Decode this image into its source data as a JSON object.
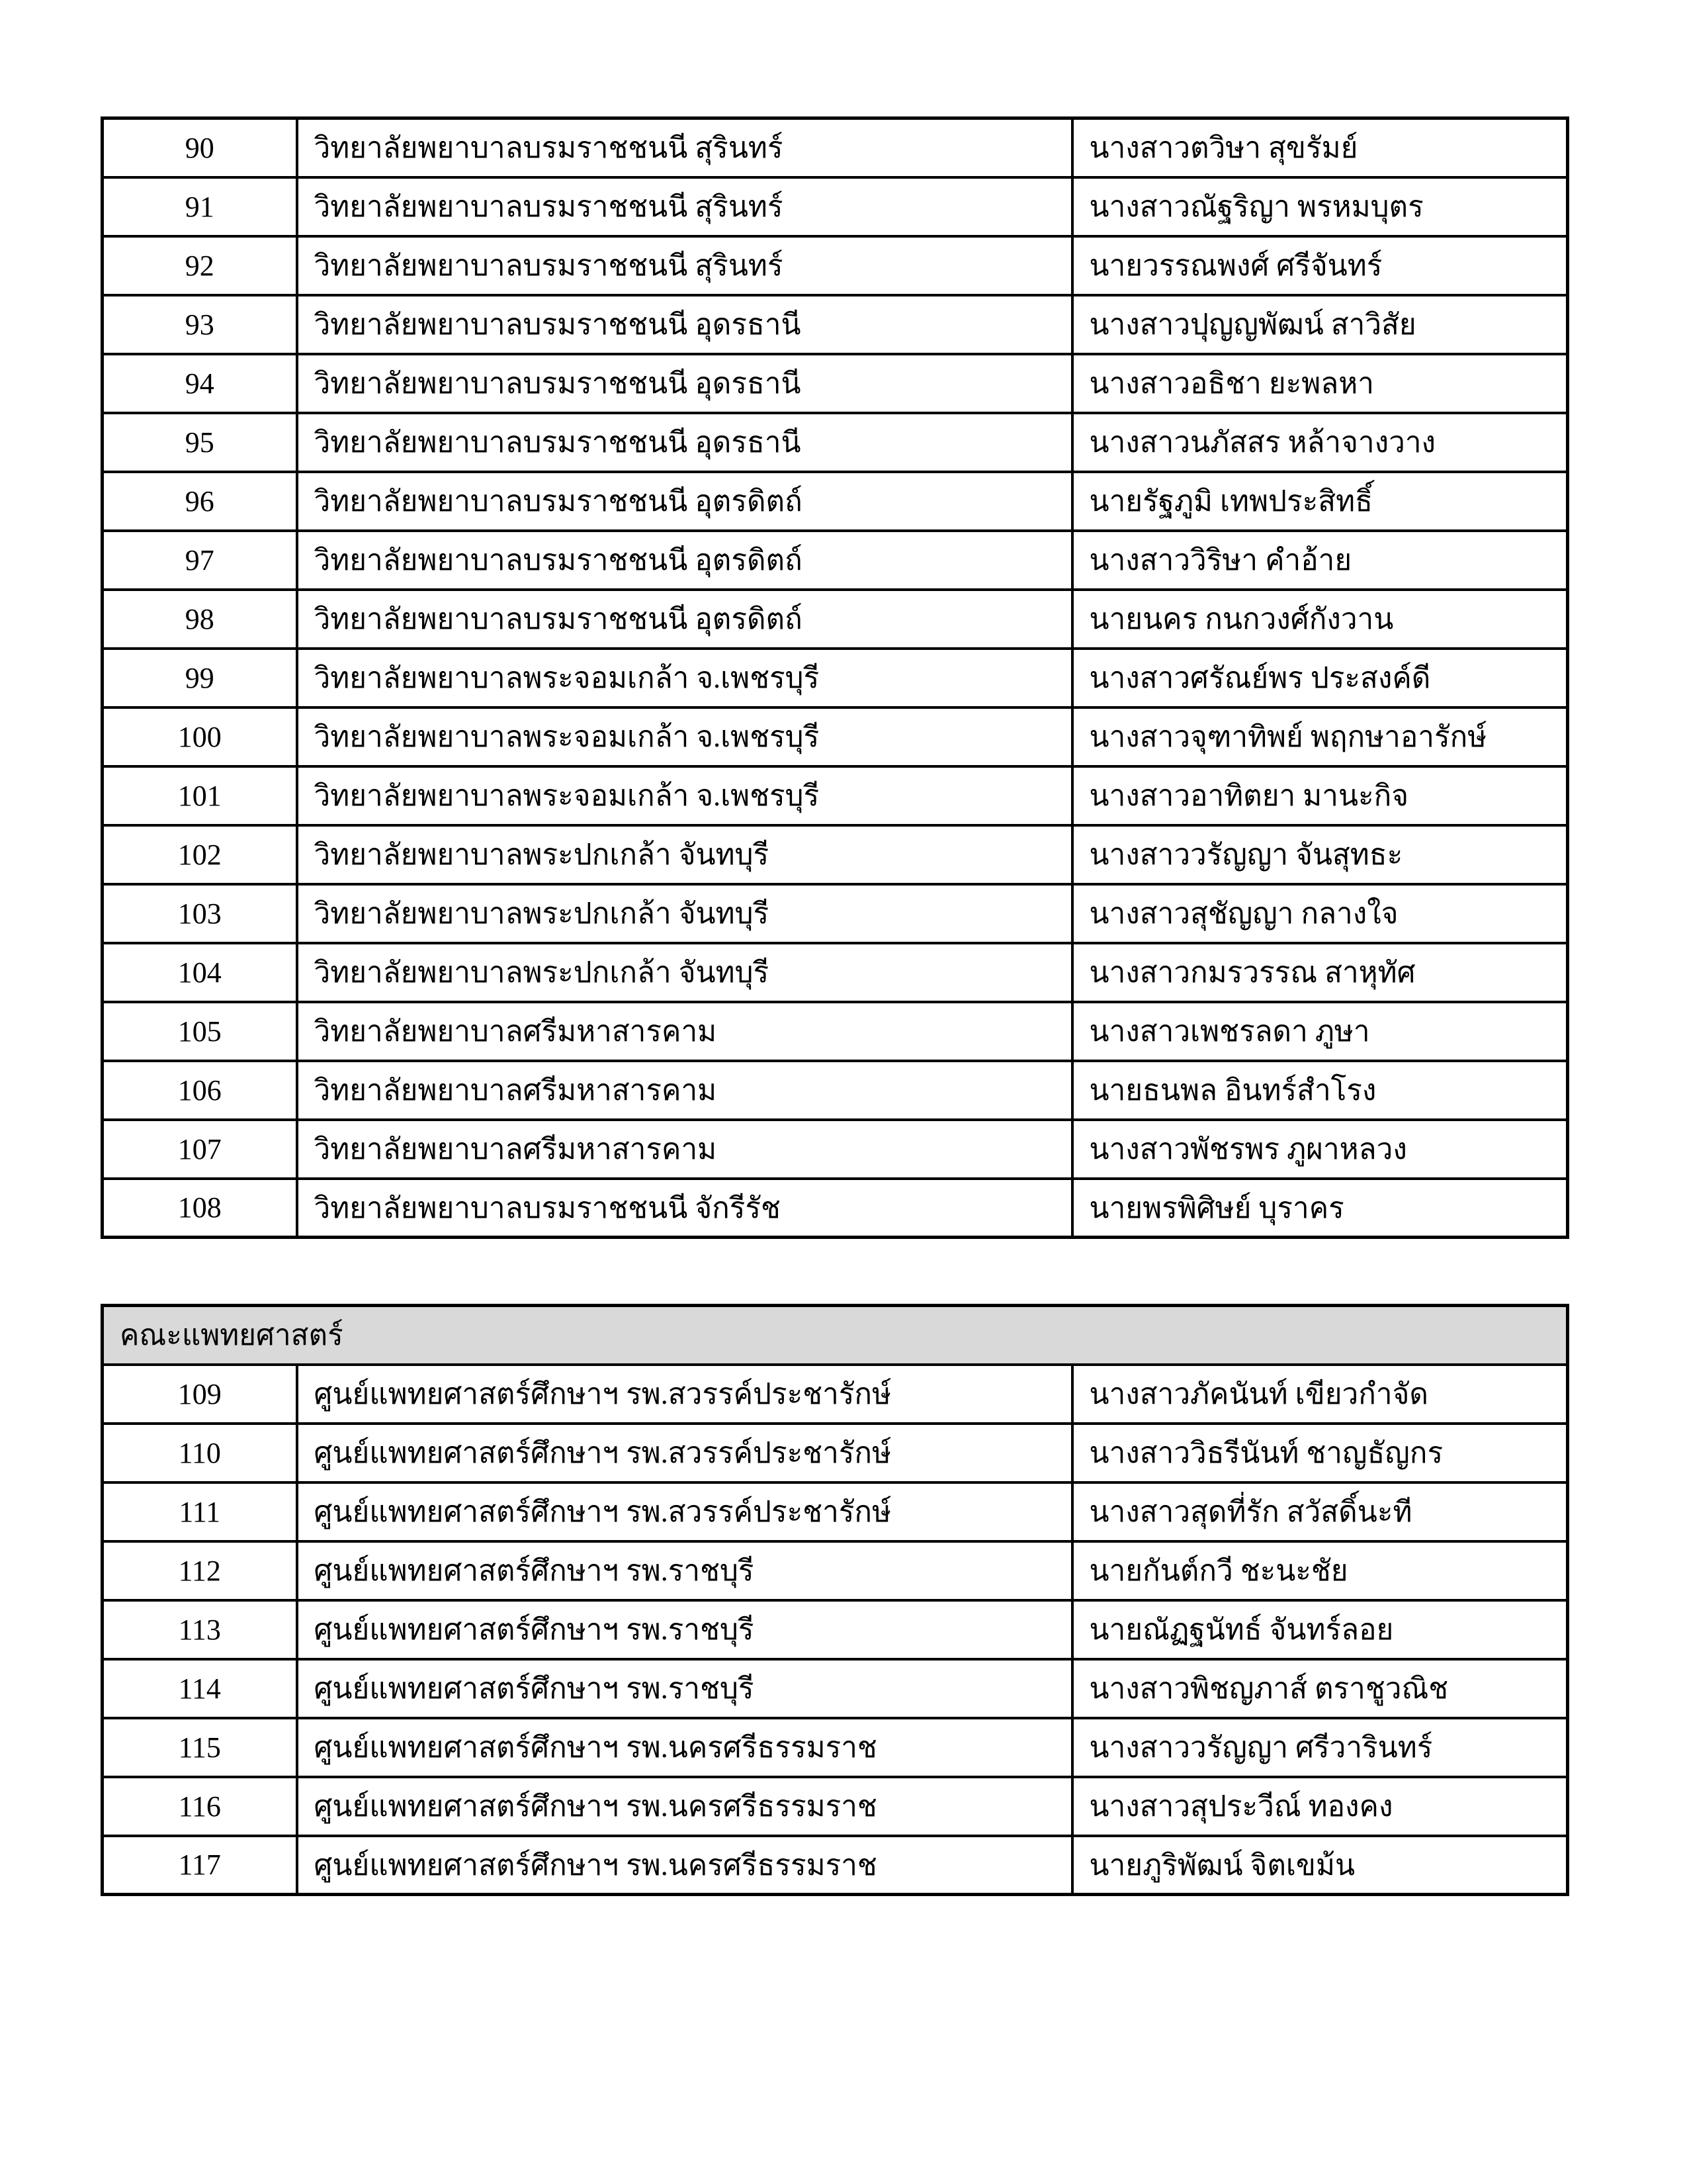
{
  "page": {
    "background_color": "#ffffff",
    "border_color": "#000000",
    "section_header_bg": "#d9d9d9"
  },
  "tables": [
    {
      "name": "nursing-colleges-roster",
      "header": null,
      "rows": [
        {
          "no": "90",
          "institution": "วิทยาลัยพยาบาลบรมราชชนนี สุรินทร์",
          "student": "นางสาวตวิษา สุขรัมย์"
        },
        {
          "no": "91",
          "institution": "วิทยาลัยพยาบาลบรมราชชนนี สุรินทร์",
          "student": "นางสาวณัฐริญา พรหมบุตร"
        },
        {
          "no": "92",
          "institution": "วิทยาลัยพยาบาลบรมราชชนนี สุรินทร์",
          "student": "นายวรรณพงศ์ ศรีจันทร์"
        },
        {
          "no": "93",
          "institution": "วิทยาลัยพยาบาลบรมราชชนนี อุดรธานี",
          "student": "นางสาวปุญญพัฒน์ สาวิสัย"
        },
        {
          "no": "94",
          "institution": "วิทยาลัยพยาบาลบรมราชชนนี อุดรธานี",
          "student": "นางสาวอธิชา ยะพลหา"
        },
        {
          "no": "95",
          "institution": "วิทยาลัยพยาบาลบรมราชชนนี อุดรธานี",
          "student": "นางสาวนภัสสร หล้าจางวาง"
        },
        {
          "no": "96",
          "institution": "วิทยาลัยพยาบาลบรมราชชนนี อุตรดิตถ์",
          "student": "นายรัฐภูมิ เทพประสิทธิ์"
        },
        {
          "no": "97",
          "institution": "วิทยาลัยพยาบาลบรมราชชนนี อุตรดิตถ์",
          "student": "นางสาววิริษา คำอ้าย"
        },
        {
          "no": "98",
          "institution": "วิทยาลัยพยาบาลบรมราชชนนี อุตรดิตถ์",
          "student": "นายนคร กนกวงศ์กังวาน"
        },
        {
          "no": "99",
          "institution": "วิทยาลัยพยาบาลพระจอมเกล้า จ.เพชรบุรี",
          "student": "นางสาวศรัณย์พร ประสงค์ดี"
        },
        {
          "no": "100",
          "institution": "วิทยาลัยพยาบาลพระจอมเกล้า จ.เพชรบุรี",
          "student": "นางสาวจุฑาทิพย์ พฤกษาอารักษ์"
        },
        {
          "no": "101",
          "institution": "วิทยาลัยพยาบาลพระจอมเกล้า จ.เพชรบุรี",
          "student": "นางสาวอาทิตยา มานะกิจ"
        },
        {
          "no": "102",
          "institution": "วิทยาลัยพยาบาลพระปกเกล้า จันทบุรี",
          "student": "นางสาววรัญญา จันสุทธะ"
        },
        {
          "no": "103",
          "institution": "วิทยาลัยพยาบาลพระปกเกล้า จันทบุรี",
          "student": "นางสาวสุชัญญา กลางใจ"
        },
        {
          "no": "104",
          "institution": "วิทยาลัยพยาบาลพระปกเกล้า จันทบุรี",
          "student": "นางสาวกมรวรรณ สาหุทัศ"
        },
        {
          "no": "105",
          "institution": "วิทยาลัยพยาบาลศรีมหาสารคาม",
          "student": "นางสาวเพชรลดา ภูษา"
        },
        {
          "no": "106",
          "institution": "วิทยาลัยพยาบาลศรีมหาสารคาม",
          "student": "นายธนพล อินทร์สำโรง"
        },
        {
          "no": "107",
          "institution": "วิทยาลัยพยาบาลศรีมหาสารคาม",
          "student": "นางสาวพัชรพร ภูผาหลวง"
        },
        {
          "no": "108",
          "institution": "วิทยาลัยพยาบาลบรมราชชนนี จักรีรัช",
          "student": "นายพรพิศิษย์ บุราคร"
        }
      ]
    },
    {
      "name": "faculty-of-medicine-roster",
      "header": "คณะแพทยศาสตร์",
      "rows": [
        {
          "no": "109",
          "institution": "ศูนย์แพทยศาสตร์ศึกษาฯ รพ.สวรรค์ประชารักษ์",
          "student": "นางสาวภัคนันท์ เขียวกำจัด"
        },
        {
          "no": "110",
          "institution": "ศูนย์แพทยศาสตร์ศึกษาฯ รพ.สวรรค์ประชารักษ์",
          "student": "นางสาววิธรีนันท์ ชาญธัญกร"
        },
        {
          "no": "111",
          "institution": "ศูนย์แพทยศาสตร์ศึกษาฯ รพ.สวรรค์ประชารักษ์",
          "student": "นางสาวสุดที่รัก สวัสดิ์นะที"
        },
        {
          "no": "112",
          "institution": "ศูนย์แพทยศาสตร์ศึกษาฯ รพ.ราชบุรี",
          "student": "นายกันต์กวี ชะนะชัย"
        },
        {
          "no": "113",
          "institution": "ศูนย์แพทยศาสตร์ศึกษาฯ รพ.ราชบุรี",
          "student": "นายณัฏฐนัทธ์ จันทร์ลอย"
        },
        {
          "no": "114",
          "institution": "ศูนย์แพทยศาสตร์ศึกษาฯ รพ.ราชบุรี",
          "student": "นางสาวพิชญภาส์ ตราชูวณิช"
        },
        {
          "no": "115",
          "institution": "ศูนย์แพทยศาสตร์ศึกษาฯ รพ.นครศรีธรรมราช",
          "student": "นางสาววรัญญา ศรีวารินทร์"
        },
        {
          "no": "116",
          "institution": "ศูนย์แพทยศาสตร์ศึกษาฯ รพ.นครศรีธรรมราช",
          "student": "นางสาวสุประวีณ์ ทองคง"
        },
        {
          "no": "117",
          "institution": "ศูนย์แพทยศาสตร์ศึกษาฯ รพ.นครศรีธรรมราช",
          "student": "นายภูริพัฒน์ จิตเขม้น"
        }
      ]
    }
  ]
}
